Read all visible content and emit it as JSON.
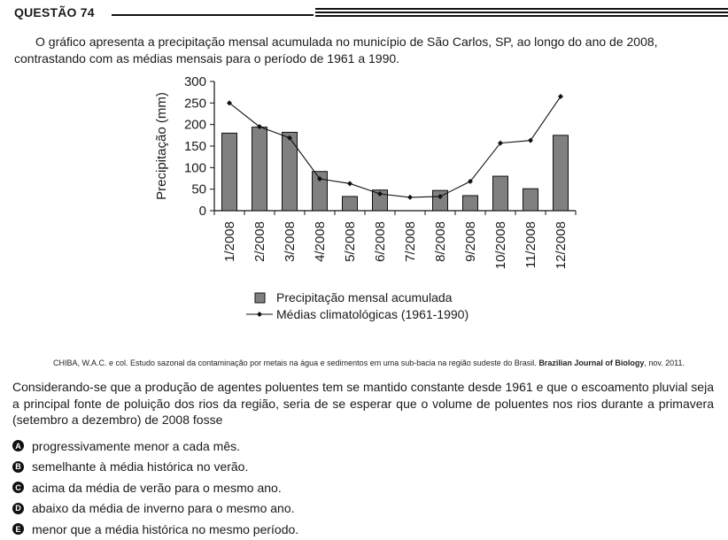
{
  "question": {
    "title": "QUESTÃO 74",
    "intro": "O gráfico apresenta a precipitação mensal acumulada no município de São Carlos, SP, ao longo do ano de 2008, contrastando com as médias mensais para o período de 1961 a 1990.",
    "citation_text": "CHIBA, W.A.C. e col. Estudo sazonal da contaminação por metais na água e sedimentos em uma sub-bacia na região sudeste do Brasil.",
    "citation_journal": "Brazilian Journal of Biology",
    "citation_tail": ", nov. 2011.",
    "prompt": "Considerando-se que a produção de agentes poluentes tem se mantido constante desde 1961 e que o escoamento pluvial seja a principal fonte de poluição dos rios da região, seria de se esperar que o volume de poluentes nos rios durante a primavera (setembro a dezembro) de 2008 fosse",
    "options": [
      {
        "letter": "A",
        "text": "progressivamente menor a cada mês."
      },
      {
        "letter": "B",
        "text": "semelhante à média histórica no verão."
      },
      {
        "letter": "C",
        "text": "acima da média de verão para o mesmo ano."
      },
      {
        "letter": "D",
        "text": "abaixo da média de inverno para o mesmo ano."
      },
      {
        "letter": "E",
        "text": "menor que a média histórica no mesmo período."
      }
    ]
  },
  "chart_data": {
    "type": "bar",
    "categories": [
      "1/2008",
      "2/2008",
      "3/2008",
      "4/2008",
      "5/2008",
      "6/2008",
      "7/2008",
      "8/2008",
      "9/2008",
      "10/2008",
      "11/2008",
      "12/2008"
    ],
    "series": [
      {
        "name": "Precipitação mensal acumulada",
        "type": "bar",
        "color": "#808080",
        "values": [
          180,
          194,
          182,
          91,
          33,
          48,
          0,
          47,
          35,
          80,
          51,
          175
        ]
      },
      {
        "name": "Médias climatológicas (1961-1990)",
        "type": "line",
        "color": "#111111",
        "values": [
          250,
          195,
          169,
          74,
          63,
          39,
          31,
          33,
          68,
          157,
          163,
          265
        ]
      }
    ],
    "ylabel": "Precipitação (mm)",
    "ylim": [
      0,
      300
    ],
    "yticks": [
      0,
      50,
      100,
      150,
      200,
      250,
      300
    ],
    "grid": false,
    "legend_placement": "bottom"
  }
}
